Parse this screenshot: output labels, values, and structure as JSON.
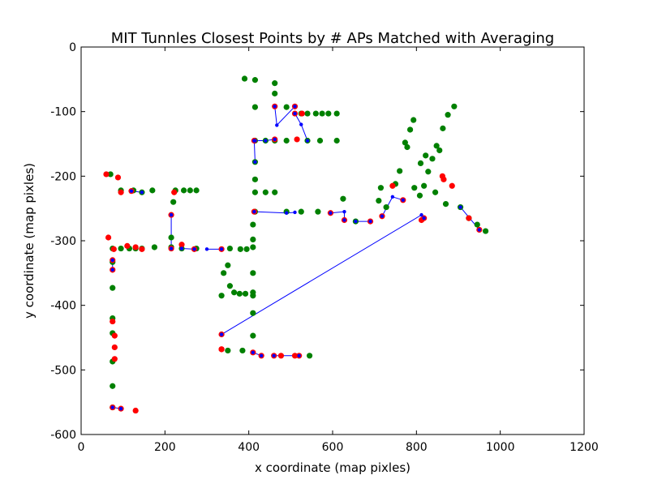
{
  "chart_data": {
    "type": "scatter",
    "title": "MIT Tunnles Closest Points by # APs Matched with Averaging",
    "xlabel": "x coordinate (map pixles)",
    "ylabel": "y coordinate (map pixles)",
    "xlim": [
      0,
      1200
    ],
    "ylim": [
      -600,
      0
    ],
    "xticks": [
      0,
      200,
      400,
      600,
      800,
      1000,
      1200
    ],
    "yticks": [
      0,
      -100,
      -200,
      -300,
      -400,
      -500,
      -600
    ],
    "grid": false,
    "colors": {
      "reference": "#008000",
      "estimate": "#ff0000",
      "link": "#0000ff"
    },
    "green_points": [
      [
        390,
        -49
      ],
      [
        415,
        -51
      ],
      [
        462,
        -56
      ],
      [
        462,
        -72
      ],
      [
        415,
        -93
      ],
      [
        490,
        -93
      ],
      [
        525,
        -103
      ],
      [
        540,
        -103
      ],
      [
        560,
        -103
      ],
      [
        575,
        -103
      ],
      [
        590,
        -103
      ],
      [
        610,
        -103
      ],
      [
        415,
        -145
      ],
      [
        440,
        -145
      ],
      [
        462,
        -145
      ],
      [
        490,
        -145
      ],
      [
        540,
        -145
      ],
      [
        570,
        -145
      ],
      [
        610,
        -145
      ],
      [
        415,
        -178
      ],
      [
        415,
        -205
      ],
      [
        415,
        -225
      ],
      [
        440,
        -225
      ],
      [
        462,
        -225
      ],
      [
        415,
        -255
      ],
      [
        490,
        -255
      ],
      [
        525,
        -255
      ],
      [
        565,
        -255
      ],
      [
        625,
        -235
      ],
      [
        655,
        -270
      ],
      [
        710,
        -238
      ],
      [
        715,
        -218
      ],
      [
        728,
        -248
      ],
      [
        750,
        -212
      ],
      [
        760,
        -192
      ],
      [
        773,
        -148
      ],
      [
        778,
        -155
      ],
      [
        785,
        -128
      ],
      [
        793,
        -113
      ],
      [
        795,
        -218
      ],
      [
        808,
        -230
      ],
      [
        810,
        -180
      ],
      [
        818,
        -215
      ],
      [
        822,
        -168
      ],
      [
        828,
        -193
      ],
      [
        838,
        -173
      ],
      [
        845,
        -225
      ],
      [
        848,
        -153
      ],
      [
        855,
        -160
      ],
      [
        863,
        -126
      ],
      [
        870,
        -243
      ],
      [
        875,
        -105
      ],
      [
        890,
        -92
      ],
      [
        905,
        -248
      ],
      [
        925,
        -265
      ],
      [
        945,
        -275
      ],
      [
        965,
        -285
      ],
      [
        410,
        -275
      ],
      [
        410,
        -298
      ],
      [
        410,
        -310
      ],
      [
        410,
        -350
      ],
      [
        410,
        -385
      ],
      [
        410,
        -412
      ],
      [
        410,
        -447
      ],
      [
        395,
        -313
      ],
      [
        380,
        -313
      ],
      [
        355,
        -312
      ],
      [
        350,
        -338
      ],
      [
        340,
        -350
      ],
      [
        355,
        -370
      ],
      [
        365,
        -380
      ],
      [
        378,
        -382
      ],
      [
        392,
        -382
      ],
      [
        410,
        -380
      ],
      [
        335,
        -385
      ],
      [
        350,
        -470
      ],
      [
        385,
        -470
      ],
      [
        545,
        -478
      ],
      [
        225,
        -222
      ],
      [
        245,
        -222
      ],
      [
        260,
        -222
      ],
      [
        275,
        -222
      ],
      [
        220,
        -240
      ],
      [
        215,
        -295
      ],
      [
        175,
        -310
      ],
      [
        215,
        -310
      ],
      [
        240,
        -312
      ],
      [
        275,
        -312
      ],
      [
        70,
        -197
      ],
      [
        95,
        -222
      ],
      [
        125,
        -222
      ],
      [
        145,
        -225
      ],
      [
        170,
        -222
      ],
      [
        95,
        -312
      ],
      [
        115,
        -312
      ],
      [
        130,
        -312
      ],
      [
        145,
        -312
      ],
      [
        75,
        -373
      ],
      [
        75,
        -420
      ],
      [
        75,
        -443
      ],
      [
        75,
        -487
      ],
      [
        75,
        -525
      ],
      [
        75,
        -558
      ],
      [
        75,
        -333
      ],
      [
        75,
        -312
      ]
    ],
    "red_points": [
      [
        462,
        -92
      ],
      [
        510,
        -92
      ],
      [
        510,
        -103
      ],
      [
        527,
        -103
      ],
      [
        462,
        -143
      ],
      [
        515,
        -143
      ],
      [
        413,
        -145
      ],
      [
        413,
        -255
      ],
      [
        595,
        -257
      ],
      [
        628,
        -268
      ],
      [
        690,
        -270
      ],
      [
        718,
        -262
      ],
      [
        743,
        -215
      ],
      [
        768,
        -237
      ],
      [
        812,
        -268
      ],
      [
        818,
        -265
      ],
      [
        862,
        -200
      ],
      [
        865,
        -205
      ],
      [
        885,
        -215
      ],
      [
        925,
        -265
      ],
      [
        950,
        -283
      ],
      [
        60,
        -197
      ],
      [
        88,
        -202
      ],
      [
        95,
        -225
      ],
      [
        120,
        -223
      ],
      [
        65,
        -295
      ],
      [
        110,
        -308
      ],
      [
        130,
        -310
      ],
      [
        145,
        -313
      ],
      [
        78,
        -313
      ],
      [
        75,
        -345
      ],
      [
        75,
        -330
      ],
      [
        75,
        -425
      ],
      [
        80,
        -447
      ],
      [
        80,
        -465
      ],
      [
        80,
        -483
      ],
      [
        75,
        -558
      ],
      [
        95,
        -560
      ],
      [
        130,
        -563
      ],
      [
        215,
        -260
      ],
      [
        222,
        -225
      ],
      [
        215,
        -312
      ],
      [
        240,
        -306
      ],
      [
        270,
        -313
      ],
      [
        335,
        -313
      ],
      [
        335,
        -445
      ],
      [
        335,
        -468
      ],
      [
        410,
        -473
      ],
      [
        430,
        -478
      ],
      [
        460,
        -478
      ],
      [
        477,
        -478
      ],
      [
        510,
        -478
      ],
      [
        335,
        -468
      ],
      [
        520,
        -478
      ]
    ],
    "links": [
      [
        [
          462,
          -92
        ],
        [
          467,
          -121
        ],
        [
          510,
          -92
        ]
      ],
      [
        [
          510,
          -103
        ],
        [
          525,
          -120
        ],
        [
          540,
          -145
        ]
      ],
      [
        [
          413,
          -145
        ],
        [
          415,
          -145
        ],
        [
          440,
          -145
        ],
        [
          462,
          -143
        ]
      ],
      [
        [
          413,
          -145
        ],
        [
          415,
          -178
        ]
      ],
      [
        [
          413,
          -255
        ],
        [
          490,
          -257
        ],
        [
          510,
          -256
        ]
      ],
      [
        [
          595,
          -257
        ],
        [
          628,
          -255
        ],
        [
          628,
          -268
        ]
      ],
      [
        [
          655,
          -270
        ],
        [
          690,
          -270
        ]
      ],
      [
        [
          718,
          -262
        ],
        [
          743,
          -232
        ],
        [
          768,
          -237
        ]
      ],
      [
        [
          335,
          -445
        ],
        [
          812,
          -260
        ],
        [
          818,
          -265
        ]
      ],
      [
        [
          905,
          -248
        ],
        [
          950,
          -283
        ]
      ],
      [
        [
          120,
          -223
        ],
        [
          145,
          -225
        ]
      ],
      [
        [
          215,
          -260
        ],
        [
          215,
          -312
        ]
      ],
      [
        [
          240,
          -312
        ],
        [
          270,
          -313
        ]
      ],
      [
        [
          300,
          -313
        ],
        [
          335,
          -313
        ]
      ],
      [
        [
          75,
          -330
        ],
        [
          75,
          -345
        ]
      ],
      [
        [
          75,
          -558
        ],
        [
          95,
          -560
        ]
      ],
      [
        [
          410,
          -473
        ],
        [
          430,
          -478
        ]
      ],
      [
        [
          460,
          -478
        ],
        [
          520,
          -478
        ]
      ]
    ]
  }
}
